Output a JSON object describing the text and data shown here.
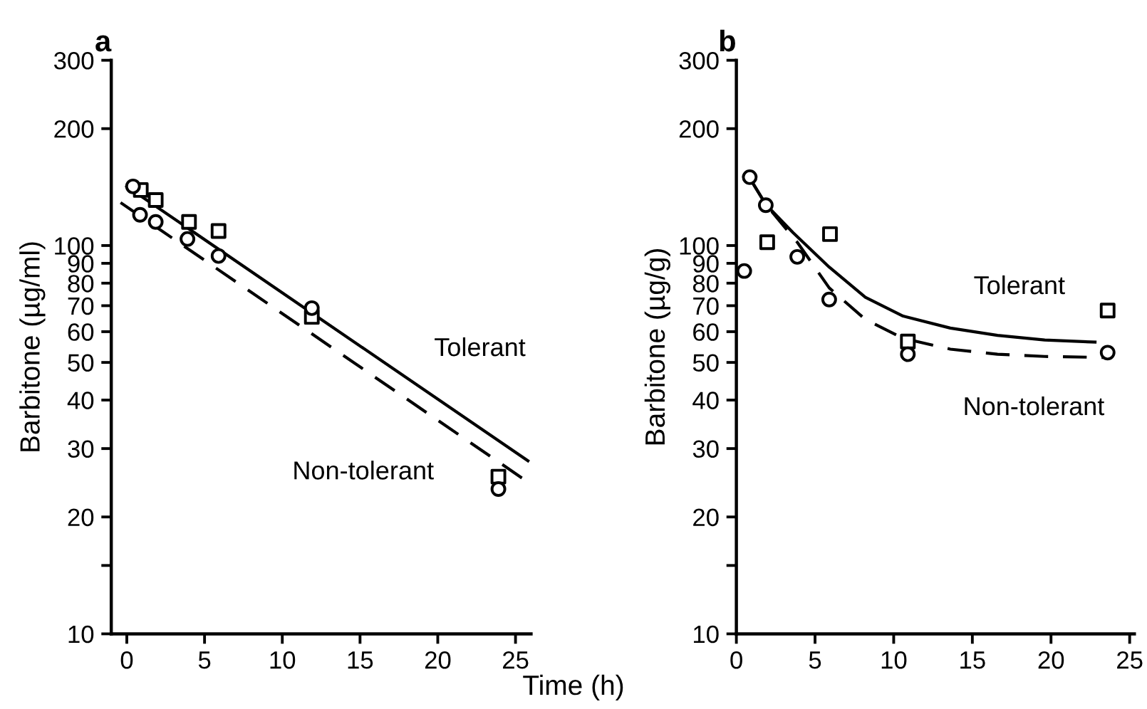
{
  "chart_data": [
    {
      "type": "scatter",
      "title": "a",
      "ylabel": "Barbitone (µg/ml)",
      "xlabel": "Time (h)",
      "log": "y",
      "xlim": [
        -1,
        26
      ],
      "ylim": [
        10,
        300
      ],
      "xticks": [
        0,
        5,
        10,
        15,
        20,
        25
      ],
      "yticks": [
        10,
        {
          "value": 15,
          "label": null
        },
        20,
        30,
        40,
        50,
        60,
        70,
        80,
        90,
        100,
        200,
        300
      ],
      "grid": false,
      "legend": false,
      "series": [
        {
          "type": "scatter",
          "marker": "square",
          "color": "#000000",
          "x": [
            0.9,
            1.86,
            4.0,
            5.9,
            11.9,
            23.9
          ],
          "values": [
            139,
            131,
            115,
            109,
            65.5,
            25.4
          ]
        },
        {
          "type": "scatter",
          "marker": "circle",
          "color": "#000000",
          "x": [
            0.4,
            0.85,
            1.86,
            3.9,
            5.9,
            11.9,
            23.9
          ],
          "values": [
            142,
            120,
            115,
            104,
            94,
            69,
            23.6
          ]
        },
        {
          "type": "line",
          "line_style": "solid",
          "color": "#000000",
          "x": [
            0,
            25.8
          ],
          "values": [
            142,
            27.9
          ]
        },
        {
          "type": "line",
          "line_style": "dashed",
          "color": "#000000",
          "x": [
            -0.4,
            25.6
          ],
          "values": [
            129,
            24.9
          ]
        }
      ],
      "annotations": [
        "Tolerant",
        "Non-tolerant"
      ]
    },
    {
      "type": "scatter",
      "title": "b",
      "ylabel": "Barbitone (µg/g)",
      "log": "y",
      "xlim": [
        0,
        25.3
      ],
      "ylim": [
        10,
        300
      ],
      "xticks": [
        0,
        5,
        10,
        15,
        20,
        25
      ],
      "yticks": [
        10,
        {
          "value": 15,
          "label": null
        },
        20,
        30,
        40,
        50,
        60,
        70,
        80,
        90,
        100,
        200,
        300
      ],
      "grid": false,
      "legend": false,
      "series": [
        {
          "type": "scatter",
          "marker": "square",
          "color": "#000000",
          "x": [
            1.96,
            5.95,
            10.9,
            23.6
          ],
          "values": [
            102,
            107,
            56.6,
            68
          ]
        },
        {
          "type": "scatter",
          "marker": "circle",
          "color": "#000000",
          "x": [
            0.5,
            0.85,
            1.87,
            3.87,
            5.9,
            10.9,
            23.6
          ],
          "values": [
            86,
            150,
            127,
            93.5,
            72.6,
            52.5,
            53
          ]
        },
        {
          "type": "line",
          "line_style": "solid",
          "color": "#000000",
          "x": [
            0.9,
            1.87,
            3.6,
            5.9,
            8.2,
            10.6,
            13.6,
            16.6,
            19.6,
            22.8
          ],
          "values": [
            148,
            127.6,
            108,
            88,
            73.6,
            65.8,
            61.3,
            58.7,
            57.1,
            56.4
          ]
        },
        {
          "type": "line",
          "line_style": "dashed",
          "color": "#000000",
          "x": [
            0.9,
            1.87,
            3.87,
            5.9,
            8.2,
            10.6,
            13.6,
            16.6,
            19.6,
            23.3
          ],
          "values": [
            148,
            127.6,
            102,
            77.8,
            64.5,
            57.7,
            54.1,
            52.5,
            51.8,
            51.5
          ]
        }
      ],
      "annotations": [
        "Tolerant",
        "Non-tolerant"
      ]
    }
  ]
}
